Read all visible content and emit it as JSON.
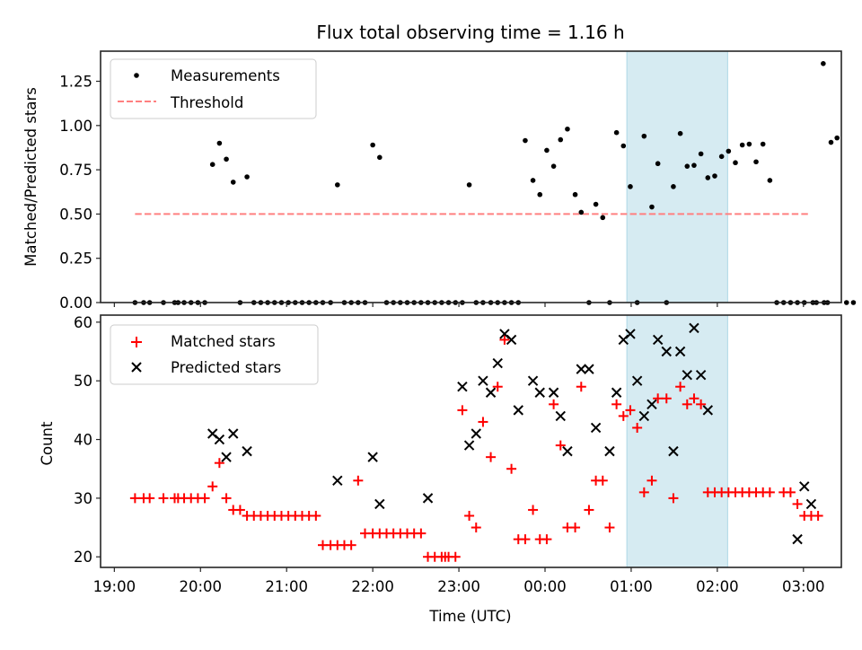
{
  "chart_data": [
    {
      "type": "scatter",
      "title": "Flux total observing time = 1.16 h",
      "xlabel": "",
      "ylabel": "Matched/Predicted stars",
      "ylim": [
        0,
        1.42
      ],
      "yticks": [
        "0.00",
        "0.25",
        "0.50",
        "0.75",
        "1.00",
        "1.25"
      ],
      "ytick_values": [
        0,
        0.25,
        0.5,
        0.75,
        1.0,
        1.25
      ],
      "xlim_hours_from_1900": [
        -0.16,
        8.44
      ],
      "shaded_span_hours_from_1900": [
        5.95,
        7.12
      ],
      "shade_color": "#add8e6",
      "legend": {
        "placement": "top-left",
        "entries": [
          "Measurements",
          "Threshold"
        ]
      },
      "threshold": {
        "name": "Threshold",
        "value": 0.5,
        "x_range_hours_from_1900": [
          0.24,
          8.06
        ],
        "color": "#ff8080",
        "style": "dashed"
      },
      "series": [
        {
          "name": "Measurements",
          "color": "#000000",
          "marker": "dot",
          "points": [
            [
              0.24,
              0
            ],
            [
              0.34,
              0
            ],
            [
              0.41,
              0
            ],
            [
              0.57,
              0
            ],
            [
              0.7,
              0
            ],
            [
              0.74,
              0
            ],
            [
              0.81,
              0
            ],
            [
              0.89,
              0
            ],
            [
              0.97,
              0
            ],
            [
              1.05,
              0
            ],
            [
              1.14,
              0.78
            ],
            [
              1.22,
              0.9
            ],
            [
              1.3,
              0.81
            ],
            [
              1.38,
              0.68
            ],
            [
              1.46,
              0
            ],
            [
              1.54,
              0.71
            ],
            [
              1.62,
              0
            ],
            [
              1.7,
              0
            ],
            [
              1.78,
              0
            ],
            [
              1.86,
              0
            ],
            [
              1.94,
              0
            ],
            [
              2.02,
              0
            ],
            [
              2.1,
              0
            ],
            [
              2.18,
              0
            ],
            [
              2.26,
              0
            ],
            [
              2.34,
              0
            ],
            [
              2.42,
              0
            ],
            [
              2.51,
              0
            ],
            [
              2.59,
              0.665
            ],
            [
              2.67,
              0
            ],
            [
              2.75,
              0
            ],
            [
              2.83,
              0
            ],
            [
              2.91,
              0
            ],
            [
              3.0,
              0.89
            ],
            [
              3.08,
              0.82
            ],
            [
              3.16,
              0
            ],
            [
              3.24,
              0
            ],
            [
              3.32,
              0
            ],
            [
              3.4,
              0
            ],
            [
              3.48,
              0
            ],
            [
              3.56,
              0
            ],
            [
              3.64,
              0
            ],
            [
              3.72,
              0
            ],
            [
              3.8,
              0
            ],
            [
              3.88,
              0
            ],
            [
              3.96,
              0
            ],
            [
              4.04,
              0
            ],
            [
              4.12,
              0.665
            ],
            [
              4.2,
              0
            ],
            [
              4.28,
              0
            ],
            [
              4.37,
              0
            ],
            [
              4.45,
              0
            ],
            [
              4.53,
              0
            ],
            [
              4.61,
              0
            ],
            [
              4.69,
              0
            ],
            [
              4.77,
              0.915
            ],
            [
              4.86,
              0.69
            ],
            [
              4.94,
              0.61
            ],
            [
              5.02,
              0.86
            ],
            [
              5.1,
              0.77
            ],
            [
              5.18,
              0.92
            ],
            [
              5.26,
              0.98
            ],
            [
              5.35,
              0.61
            ],
            [
              5.42,
              0.51
            ],
            [
              5.51,
              0
            ],
            [
              5.59,
              0.555
            ],
            [
              5.67,
              0.48
            ],
            [
              5.75,
              0
            ],
            [
              5.83,
              0.96
            ],
            [
              5.91,
              0.885
            ],
            [
              5.99,
              0.655
            ],
            [
              6.07,
              0
            ],
            [
              6.15,
              0.94
            ],
            [
              6.24,
              0.54
            ],
            [
              6.31,
              0.785
            ],
            [
              6.41,
              0
            ],
            [
              6.49,
              0.655
            ],
            [
              6.57,
              0.955
            ],
            [
              6.65,
              0.77
            ],
            [
              6.73,
              0.775
            ],
            [
              6.81,
              0.84
            ],
            [
              6.89,
              0.705
            ],
            [
              6.97,
              0.715
            ],
            [
              7.05,
              0.825
            ],
            [
              7.13,
              0.855
            ],
            [
              7.21,
              0.79
            ],
            [
              7.29,
              0.89
            ],
            [
              7.37,
              0.895
            ],
            [
              7.45,
              0.795
            ],
            [
              7.53,
              0.895
            ],
            [
              7.61,
              0.69
            ],
            [
              7.69,
              0
            ],
            [
              7.77,
              0
            ],
            [
              7.85,
              0
            ],
            [
              7.93,
              0
            ],
            [
              8.01,
              0
            ],
            [
              8.11,
              0
            ],
            [
              8.15,
              0
            ],
            [
              8.24,
              0
            ],
            [
              8.28,
              0
            ],
            [
              8.23,
              1.35
            ],
            [
              8.32,
              0.905
            ],
            [
              8.39,
              0.93
            ],
            [
              8.5,
              0
            ],
            [
              8.58,
              0
            ]
          ]
        }
      ]
    },
    {
      "type": "scatter",
      "title": "",
      "xlabel": "Time (UTC)",
      "ylabel": "Count",
      "ylim": [
        18.2,
        61.2
      ],
      "yticks": [
        "20",
        "30",
        "40",
        "50",
        "60"
      ],
      "ytick_values": [
        20,
        30,
        40,
        50,
        60
      ],
      "xticks": [
        "19:00",
        "20:00",
        "21:00",
        "22:00",
        "23:00",
        "00:00",
        "01:00",
        "02:00",
        "03:00"
      ],
      "xtick_values_hours_from_1900": [
        0,
        1,
        2,
        3,
        4,
        5,
        6,
        7,
        8
      ],
      "xlim_hours_from_1900": [
        -0.16,
        8.44
      ],
      "shaded_span_hours_from_1900": [
        5.95,
        7.12
      ],
      "shade_color": "#add8e6",
      "legend": {
        "placement": "top-left",
        "entries": [
          "Matched stars",
          "Predicted stars"
        ]
      },
      "series": [
        {
          "name": "Matched stars",
          "color": "#ff0000",
          "marker": "plus",
          "points": [
            [
              0.24,
              30
            ],
            [
              0.34,
              30
            ],
            [
              0.41,
              30
            ],
            [
              0.57,
              30
            ],
            [
              0.7,
              30
            ],
            [
              0.74,
              30
            ],
            [
              0.81,
              30
            ],
            [
              0.89,
              30
            ],
            [
              0.97,
              30
            ],
            [
              1.05,
              30
            ],
            [
              1.14,
              32
            ],
            [
              1.22,
              36
            ],
            [
              1.3,
              30
            ],
            [
              1.38,
              28
            ],
            [
              1.46,
              28
            ],
            [
              1.54,
              27
            ],
            [
              1.62,
              27
            ],
            [
              1.7,
              27
            ],
            [
              1.78,
              27
            ],
            [
              1.86,
              27
            ],
            [
              1.94,
              27
            ],
            [
              2.02,
              27
            ],
            [
              2.1,
              27
            ],
            [
              2.18,
              27
            ],
            [
              2.26,
              27
            ],
            [
              2.34,
              27
            ],
            [
              2.42,
              22
            ],
            [
              2.51,
              22
            ],
            [
              2.59,
              22
            ],
            [
              2.67,
              22
            ],
            [
              2.75,
              22
            ],
            [
              2.83,
              33
            ],
            [
              2.91,
              24
            ],
            [
              3.0,
              24
            ],
            [
              3.08,
              24
            ],
            [
              3.16,
              24
            ],
            [
              3.24,
              24
            ],
            [
              3.32,
              24
            ],
            [
              3.4,
              24
            ],
            [
              3.48,
              24
            ],
            [
              3.56,
              24
            ],
            [
              3.64,
              20
            ],
            [
              3.72,
              20
            ],
            [
              3.8,
              20
            ],
            [
              3.84,
              20
            ],
            [
              3.88,
              20
            ],
            [
              3.96,
              20
            ],
            [
              4.04,
              45
            ],
            [
              4.12,
              27
            ],
            [
              4.2,
              25
            ],
            [
              4.28,
              43
            ],
            [
              4.37,
              37
            ],
            [
              4.45,
              49
            ],
            [
              4.53,
              57
            ],
            [
              4.61,
              35
            ],
            [
              4.69,
              23
            ],
            [
              4.77,
              23
            ],
            [
              4.86,
              28
            ],
            [
              4.94,
              23
            ],
            [
              5.02,
              23
            ],
            [
              5.1,
              46
            ],
            [
              5.18,
              39
            ],
            [
              5.26,
              25
            ],
            [
              5.35,
              25
            ],
            [
              5.42,
              49
            ],
            [
              5.51,
              28
            ],
            [
              5.59,
              33
            ],
            [
              5.67,
              33
            ],
            [
              5.75,
              25
            ],
            [
              5.83,
              46
            ],
            [
              5.91,
              44
            ],
            [
              5.99,
              45
            ],
            [
              6.07,
              42
            ],
            [
              6.15,
              31
            ],
            [
              6.24,
              33
            ],
            [
              6.31,
              47
            ],
            [
              6.41,
              47
            ],
            [
              6.49,
              30
            ],
            [
              6.57,
              49
            ],
            [
              6.65,
              46
            ],
            [
              6.73,
              47
            ],
            [
              6.81,
              46
            ],
            [
              6.89,
              31
            ],
            [
              6.97,
              31
            ],
            [
              7.05,
              31
            ],
            [
              7.13,
              31
            ],
            [
              7.21,
              31
            ],
            [
              7.29,
              31
            ],
            [
              7.37,
              31
            ],
            [
              7.45,
              31
            ],
            [
              7.53,
              31
            ],
            [
              7.61,
              31
            ],
            [
              7.77,
              31
            ],
            [
              7.85,
              31
            ],
            [
              7.93,
              29
            ],
            [
              8.01,
              27
            ],
            [
              8.09,
              27
            ],
            [
              8.17,
              27
            ]
          ]
        },
        {
          "name": "Predicted stars",
          "color": "#000000",
          "marker": "x",
          "points": [
            [
              1.14,
              41
            ],
            [
              1.22,
              40
            ],
            [
              1.3,
              37
            ],
            [
              1.38,
              41
            ],
            [
              1.54,
              38
            ],
            [
              2.59,
              33
            ],
            [
              3.0,
              37
            ],
            [
              3.08,
              29
            ],
            [
              3.64,
              30
            ],
            [
              4.04,
              49
            ],
            [
              4.12,
              39
            ],
            [
              4.2,
              41
            ],
            [
              4.28,
              50
            ],
            [
              4.37,
              48
            ],
            [
              4.45,
              53
            ],
            [
              4.53,
              58
            ],
            [
              4.61,
              57
            ],
            [
              4.69,
              45
            ],
            [
              4.86,
              50
            ],
            [
              4.94,
              48
            ],
            [
              5.1,
              48
            ],
            [
              5.18,
              44
            ],
            [
              5.26,
              38
            ],
            [
              5.42,
              52
            ],
            [
              5.51,
              52
            ],
            [
              5.59,
              42
            ],
            [
              5.75,
              38
            ],
            [
              5.83,
              48
            ],
            [
              5.91,
              57
            ],
            [
              5.99,
              58
            ],
            [
              6.07,
              50
            ],
            [
              6.15,
              44
            ],
            [
              6.24,
              46
            ],
            [
              6.31,
              57
            ],
            [
              6.41,
              55
            ],
            [
              6.49,
              38
            ],
            [
              6.57,
              55
            ],
            [
              6.65,
              51
            ],
            [
              6.73,
              59
            ],
            [
              6.81,
              51
            ],
            [
              6.89,
              45
            ],
            [
              7.93,
              23
            ],
            [
              8.01,
              32
            ],
            [
              8.09,
              29
            ]
          ]
        }
      ]
    }
  ]
}
